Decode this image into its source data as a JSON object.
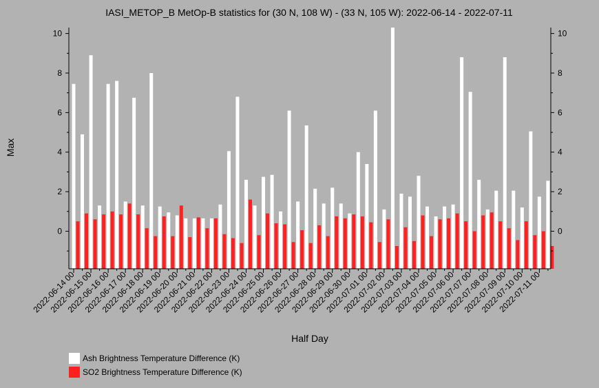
{
  "chart_data": {
    "type": "bar",
    "title": "IASI_METOP_B MetOp-B statistics for (30 N, 108 W) - (33 N, 105 W): 2022-06-14 - 2022-07-11",
    "xlabel": "Half Day",
    "ylabel": "Max",
    "ylim": [
      -1.9,
      10.3
    ],
    "yticks": [
      0,
      2,
      4,
      6,
      8,
      10
    ],
    "grid": false,
    "legend_position": "bottom-left",
    "x_tick_labels": [
      "2022-06-14 00",
      "2022-06-15 00",
      "2022-06-16 00",
      "2022-06-17 00",
      "2022-06-18 00",
      "2022-06-19 00",
      "2022-06-20 00",
      "2022-06-21 00",
      "2022-06-22 00",
      "2022-06-23 00",
      "2022-06-24 00",
      "2022-06-25 00",
      "2022-06-26 00",
      "2022-06-27 00",
      "2022-06-28 00",
      "2022-06-29 00",
      "2022-06-30 00",
      "2022-07-01 00",
      "2022-07-02 00",
      "2022-07-03 00",
      "2022-07-04 00",
      "2022-07-05 00",
      "2022-07-06 00",
      "2022-07-07 00",
      "2022-07-08 00",
      "2022-07-09 00",
      "2022-07-10 00",
      "2022-07-11 00"
    ],
    "series": [
      {
        "name": "Ash Brightness Temperature Difference (K)",
        "color": "#ffffff",
        "values": [
          7.45,
          4.9,
          8.9,
          1.3,
          7.45,
          7.6,
          1.5,
          6.75,
          1.3,
          8.0,
          1.25,
          0.95,
          0.8,
          0.65,
          0.65,
          0.65,
          0.65,
          1.35,
          4.05,
          6.8,
          2.6,
          1.3,
          2.75,
          2.85,
          1.0,
          6.1,
          1.5,
          5.35,
          2.15,
          1.4,
          2.2,
          1.4,
          0.9,
          4.0,
          3.4,
          6.1,
          1.1,
          10.3,
          1.9,
          1.75,
          2.8,
          1.25,
          0.75,
          1.25,
          1.35,
          8.8,
          7.05,
          2.6,
          1.1,
          2.05,
          8.8,
          2.05,
          1.2,
          5.05,
          1.75,
          2.55
        ]
      },
      {
        "name": "SO2 Brightness Temperature Difference (K)",
        "color": "#ff2020",
        "values": [
          0.5,
          0.9,
          0.6,
          0.85,
          1.0,
          0.85,
          1.4,
          0.85,
          0.15,
          -0.25,
          0.75,
          -0.25,
          1.3,
          -0.3,
          0.7,
          0.15,
          0.65,
          -0.15,
          -0.35,
          -0.6,
          1.6,
          -0.2,
          0.9,
          0.4,
          0.35,
          -0.55,
          0.05,
          -0.6,
          0.3,
          -0.25,
          0.75,
          0.65,
          0.85,
          0.75,
          0.45,
          -0.55,
          0.6,
          -0.75,
          0.2,
          -0.5,
          0.8,
          -0.25,
          0.6,
          0.65,
          0.9,
          0.5,
          0.0,
          0.8,
          0.95,
          0.5,
          0.15,
          -0.45,
          0.5,
          -0.2,
          0.0,
          -0.75
        ]
      }
    ]
  }
}
